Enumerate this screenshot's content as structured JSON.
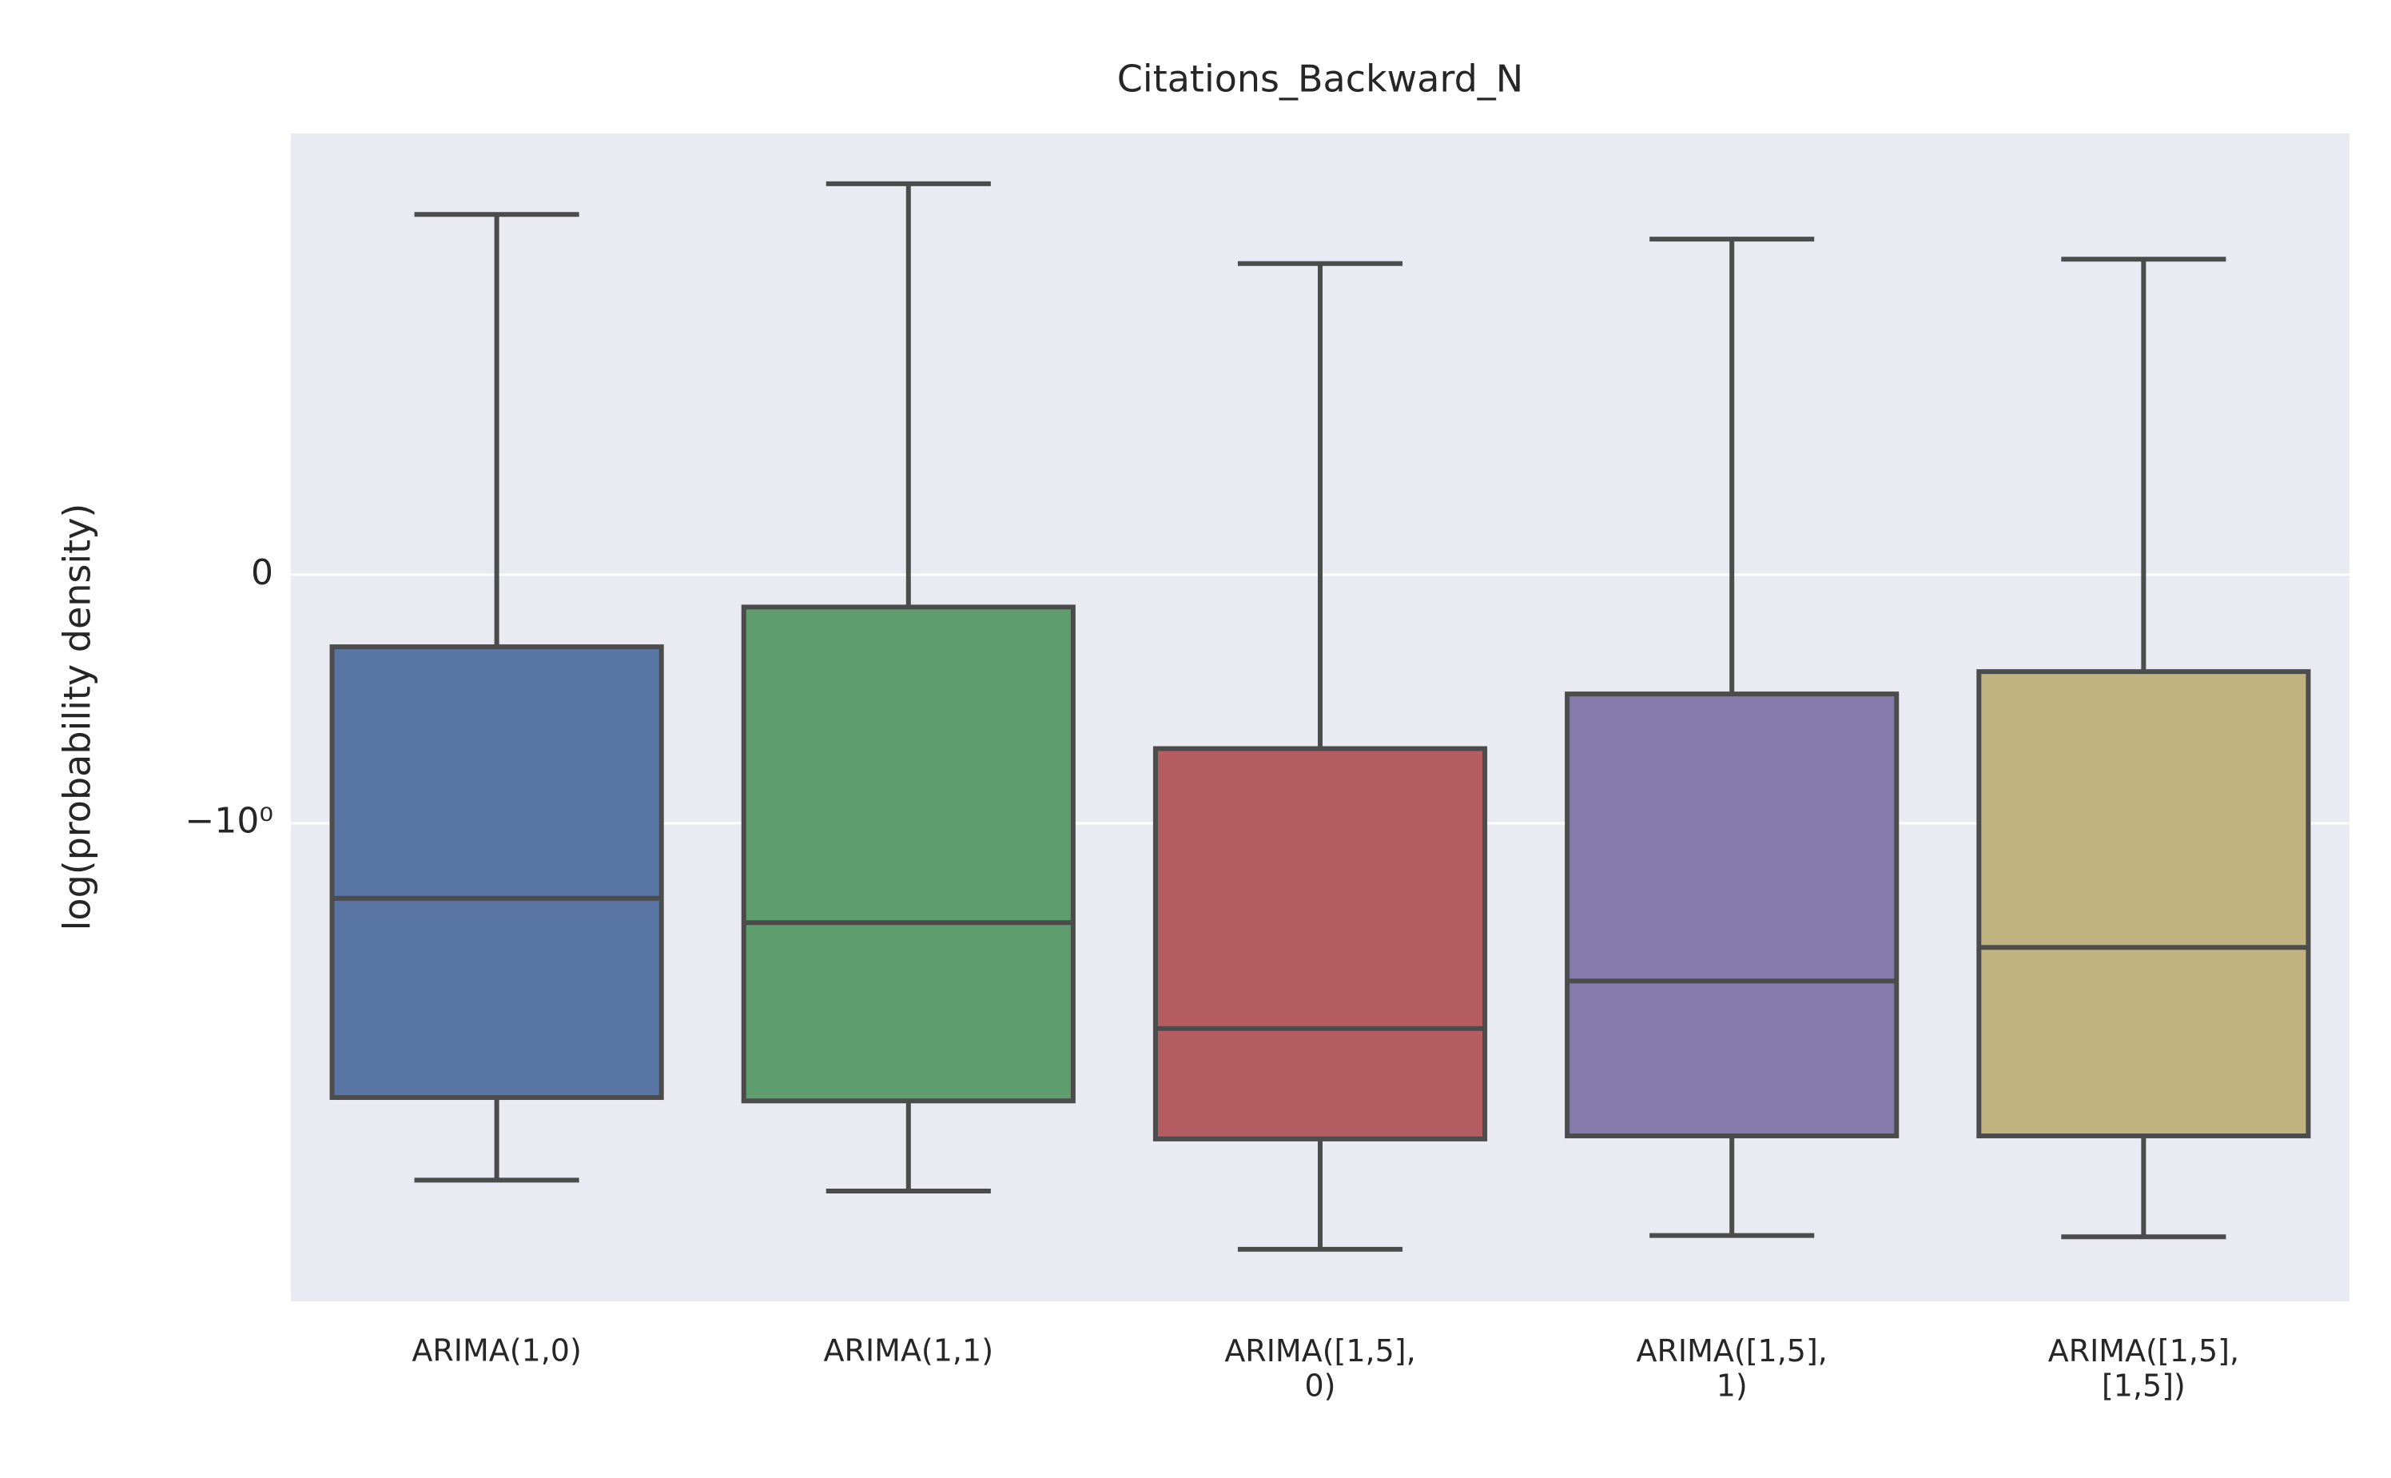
{
  "chart_data": {
    "type": "box",
    "title": "Citations_Backward_N",
    "ylabel": "log(probability density)",
    "categories": [
      "ARIMA(1,0)",
      "ARIMA(1,1)",
      "ARIMA([1,5],\n0)",
      "ARIMA([1,5],\n1)",
      "ARIMA([1,5],\n[1,5])"
    ],
    "colors": [
      "#5875a4",
      "#5f9e6e",
      "#b55d60",
      "#857aab",
      "#c1b37f"
    ],
    "boxes": [
      {
        "whislo": -39.6,
        "q1": -16.9,
        "med": -2.17,
        "q3": -0.29,
        "whishi": 3.17
      },
      {
        "whislo": -44.3,
        "q1": -17.5,
        "med": -2.79,
        "q3": -0.13,
        "whishi": 4.35
      },
      {
        "whislo": -80.7,
        "q1": -25.9,
        "med": -8.3,
        "q3": -0.7,
        "whishi": 1.91
      },
      {
        "whislo": -70,
        "q1": -25.1,
        "med": -5.09,
        "q3": -0.48,
        "whishi": 2.46
      },
      {
        "whislo": -71,
        "q1": -25.1,
        "med": -3.6,
        "q3": -0.39,
        "whishi": 2.0
      }
    ],
    "yscale": "symlog",
    "linthresh": 1,
    "ylim": [
      -138,
      7.3
    ],
    "yticks": [
      0,
      {
        "value": -1,
        "label": "−10⁰"
      }
    ],
    "grid": true
  }
}
